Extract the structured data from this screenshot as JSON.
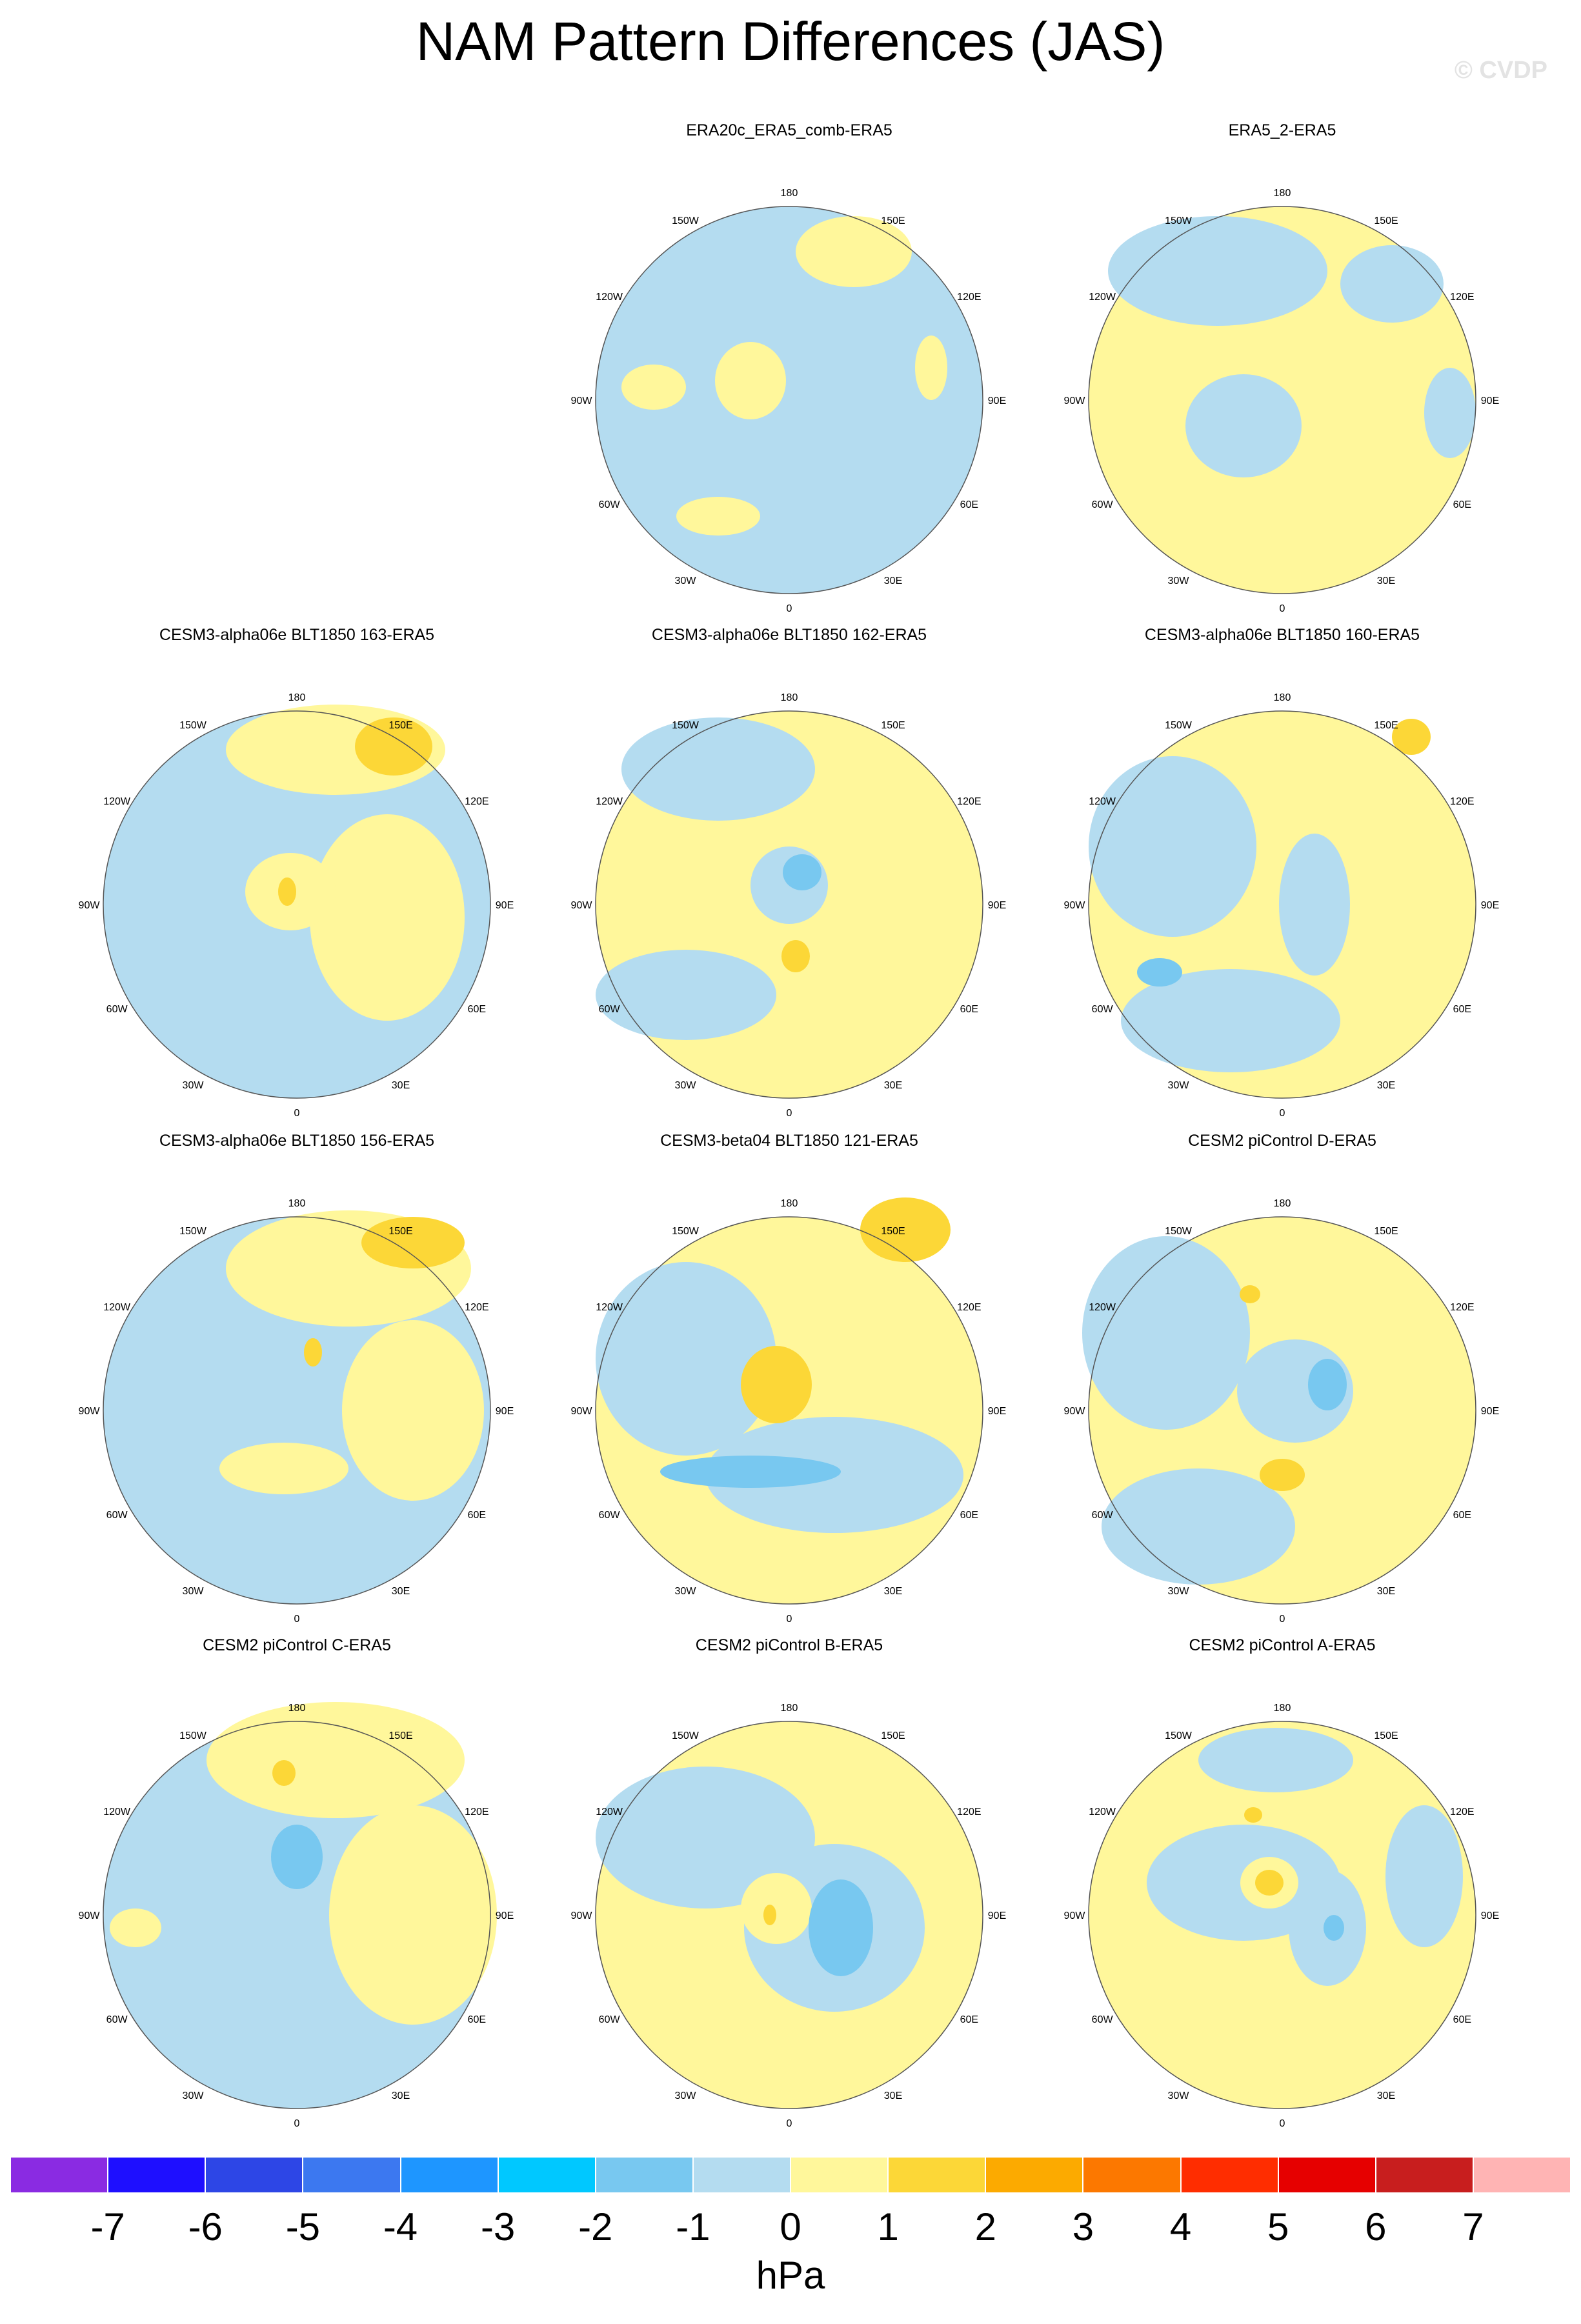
{
  "title": "NAM Pattern Differences (JAS)",
  "watermark": "© CVDP",
  "lon_labels": [
    "180",
    "150E",
    "120E",
    "90E",
    "60E",
    "30E",
    "0",
    "30W",
    "60W",
    "90W",
    "120W",
    "150W"
  ],
  "panels": [
    {
      "title": "ERA20c_ERA5_comb-ERA5",
      "base_color": "#b4dcf0"
    },
    {
      "title": "ERA5_2-ERA5",
      "base_color": "#fff79b"
    },
    {
      "title": "CESM3-alpha06e BLT1850 163-ERA5",
      "base_color": "#b4dcf0"
    },
    {
      "title": "CESM3-alpha06e BLT1850 162-ERA5",
      "base_color": "#fff79b"
    },
    {
      "title": "CESM3-alpha06e BLT1850 160-ERA5",
      "base_color": "#fff79b"
    },
    {
      "title": "CESM3-alpha06e BLT1850 156-ERA5",
      "base_color": "#b4dcf0"
    },
    {
      "title": "CESM3-beta04 BLT1850 121-ERA5",
      "base_color": "#fff79b"
    },
    {
      "title": "CESM2 piControl D-ERA5",
      "base_color": "#fff79b"
    },
    {
      "title": "CESM2 piControl C-ERA5",
      "base_color": "#b4dcf0"
    },
    {
      "title": "CESM2 piControl B-ERA5",
      "base_color": "#fff79b"
    },
    {
      "title": "CESM2 piControl A-ERA5",
      "base_color": "#fff79b"
    }
  ],
  "colorbar": {
    "colors": [
      "#8a2be2",
      "#1e0fff",
      "#2d46e6",
      "#3c78f0",
      "#1e96ff",
      "#00c8ff",
      "#78c8f0",
      "#b4dcf0",
      "#fff79b",
      "#fcd737",
      "#fcaa00",
      "#fc7800",
      "#ff2d00",
      "#e60000",
      "#c81e1e",
      "#ffb4b4"
    ],
    "labels": [
      "-7",
      "-6",
      "-5",
      "-4",
      "-3",
      "-2",
      "-1",
      "0",
      "1",
      "2",
      "3",
      "4",
      "5",
      "6",
      "7"
    ],
    "unit": "hPa"
  }
}
